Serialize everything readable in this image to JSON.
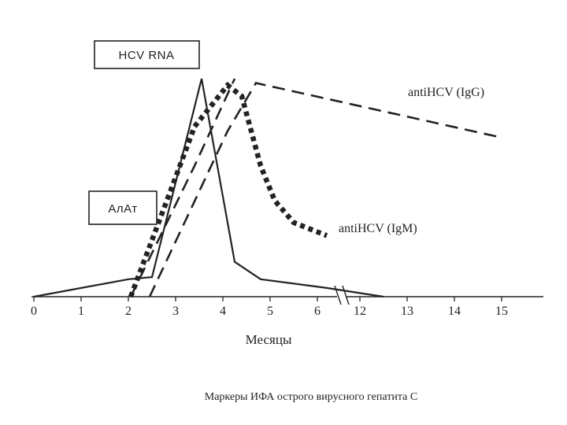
{
  "chart_data": {
    "type": "line",
    "title": "",
    "xlabel": "Месяцы",
    "ylabel": "",
    "x_ticks": [
      "0",
      "1",
      "2",
      "3",
      "4",
      "5",
      "6",
      "12",
      "13",
      "14",
      "15"
    ],
    "axis_break_between": [
      "6",
      "12"
    ],
    "series": [
      {
        "name": "АлАт",
        "style": "solid",
        "points": [
          [
            0,
            0
          ],
          [
            2,
            0.08
          ],
          [
            2.5,
            0.09
          ],
          [
            3.55,
            1.0
          ],
          [
            4.25,
            0.16
          ],
          [
            4.8,
            0.08
          ],
          [
            6.2,
            0.04
          ],
          [
            12.5,
            0
          ]
        ]
      },
      {
        "name": "HCV RNA",
        "style": "dashed",
        "points": [
          [
            2.05,
            0
          ],
          [
            3.4,
            0.6
          ],
          [
            4.25,
            1.0
          ]
        ]
      },
      {
        "name": "antiHCV (IgM)",
        "style": "dotted",
        "points": [
          [
            2.05,
            0
          ],
          [
            2.9,
            0.49
          ],
          [
            3.4,
            0.78
          ],
          [
            4.1,
            0.97
          ],
          [
            4.4,
            0.92
          ],
          [
            4.8,
            0.6
          ],
          [
            5.1,
            0.44
          ],
          [
            5.5,
            0.34
          ],
          [
            6.2,
            0.28
          ]
        ]
      },
      {
        "name": "antiHCV (IgG)",
        "style": "dashed",
        "points": [
          [
            2.45,
            0
          ],
          [
            4.1,
            0.76
          ],
          [
            4.7,
            0.98
          ],
          [
            15,
            0.73
          ]
        ]
      }
    ],
    "grid": false,
    "legend": "none"
  },
  "labels": {
    "hcv_rna": "HCV RNA",
    "alat": "АлАт",
    "igg": "antiHCV (IgG)",
    "igm": "antiHCV (IgM)"
  },
  "caption": "Маркеры ИФА острого вирусного гепатита С"
}
